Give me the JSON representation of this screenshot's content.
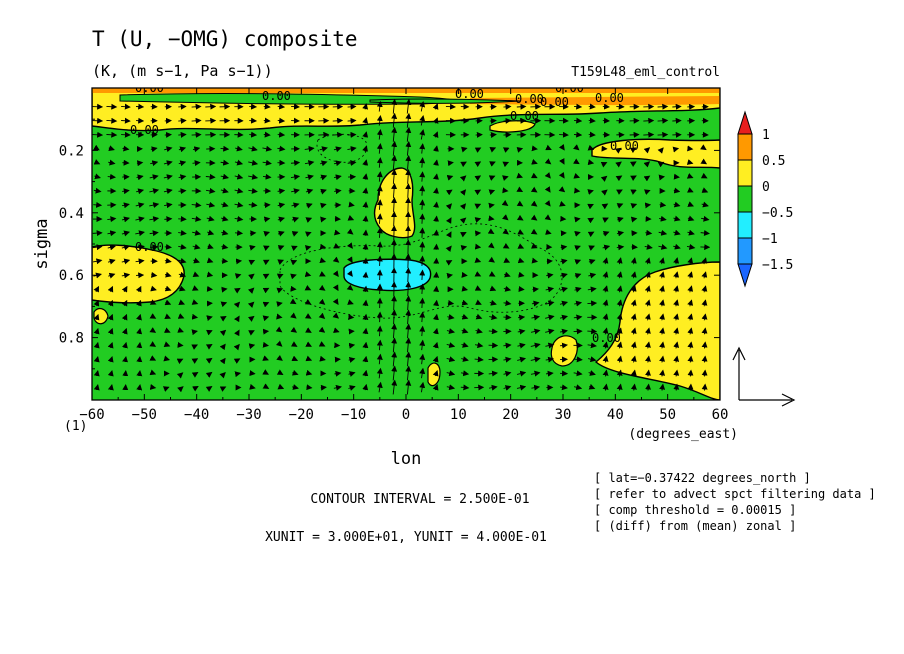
{
  "chart_data": {
    "type": "heatmap",
    "title": "T (U, −OMG) composite",
    "subtitle": "(K, (m s−1, Pa s−1))",
    "run_label": "T159L48_eml_control",
    "xlabel": "lon",
    "xunit_label": "(degrees_east)",
    "ylabel": "sigma",
    "corner_label": "(1)",
    "xlim": [
      -60,
      60
    ],
    "ylim": [
      0,
      1
    ],
    "y_inverted": true,
    "x_ticks": [
      -60,
      -50,
      -40,
      -30,
      -20,
      -10,
      0,
      10,
      20,
      30,
      40,
      50,
      60
    ],
    "y_ticks": [
      0.2,
      0.4,
      0.6,
      0.8
    ],
    "colorbar": {
      "levels": [
        "1",
        "0.5",
        "0",
        "−0.5",
        "−1",
        "−1.5"
      ],
      "colors": [
        "#e81e1e",
        "#ff9900",
        "#ffee22",
        "#22cc22",
        "#22eeff",
        "#2299ff",
        "#1a66ff"
      ]
    },
    "contour_labels": [
      "0.00"
    ],
    "contour_interval": "CONTOUR INTERVAL = 2.500E-01",
    "vector_units": "XUNIT = 3.000E+01, YUNIT = 4.000E-01",
    "notes": [
      "[ lat=−0.37422 degrees_north ]",
      "[ refer to advect spct filtering data ]",
      "[ comp threshold = 0.00015 ]",
      "[ (diff) from (mean) zonal ]"
    ],
    "regions": [
      {
        "name": "background",
        "value_range": "-0.25..0",
        "color": "green"
      },
      {
        "name": "upper-positive-band",
        "lon": [
          -60,
          60
        ],
        "sigma": [
          0.0,
          0.12
        ],
        "value_range": "0..0.5"
      },
      {
        "name": "positive-column-near-5W",
        "lon": [
          -7,
          0
        ],
        "sigma": [
          0.3,
          0.44
        ],
        "value_range": "0..0.5"
      },
      {
        "name": "negative-core-near-7W",
        "lon": [
          -12,
          4
        ],
        "sigma": [
          0.58,
          0.65
        ],
        "value_range": "-1..-0.5"
      },
      {
        "name": "positive-region-west",
        "lon": [
          -60,
          -43
        ],
        "sigma": [
          0.53,
          0.65
        ],
        "value_range": "0..0.5"
      },
      {
        "name": "positive-region-east",
        "lon": [
          38,
          60
        ],
        "sigma": [
          0.6,
          1.0
        ],
        "value_range": "0..0.5"
      },
      {
        "name": "positive-patch-upper-east",
        "lon": [
          36,
          60
        ],
        "sigma": [
          0.16,
          0.24
        ],
        "value_range": "0..0.5"
      },
      {
        "name": "positive-patch-near-30E",
        "lon": [
          27,
          33
        ],
        "sigma": [
          0.8,
          0.9
        ],
        "value_range": "0..0.5"
      }
    ]
  }
}
